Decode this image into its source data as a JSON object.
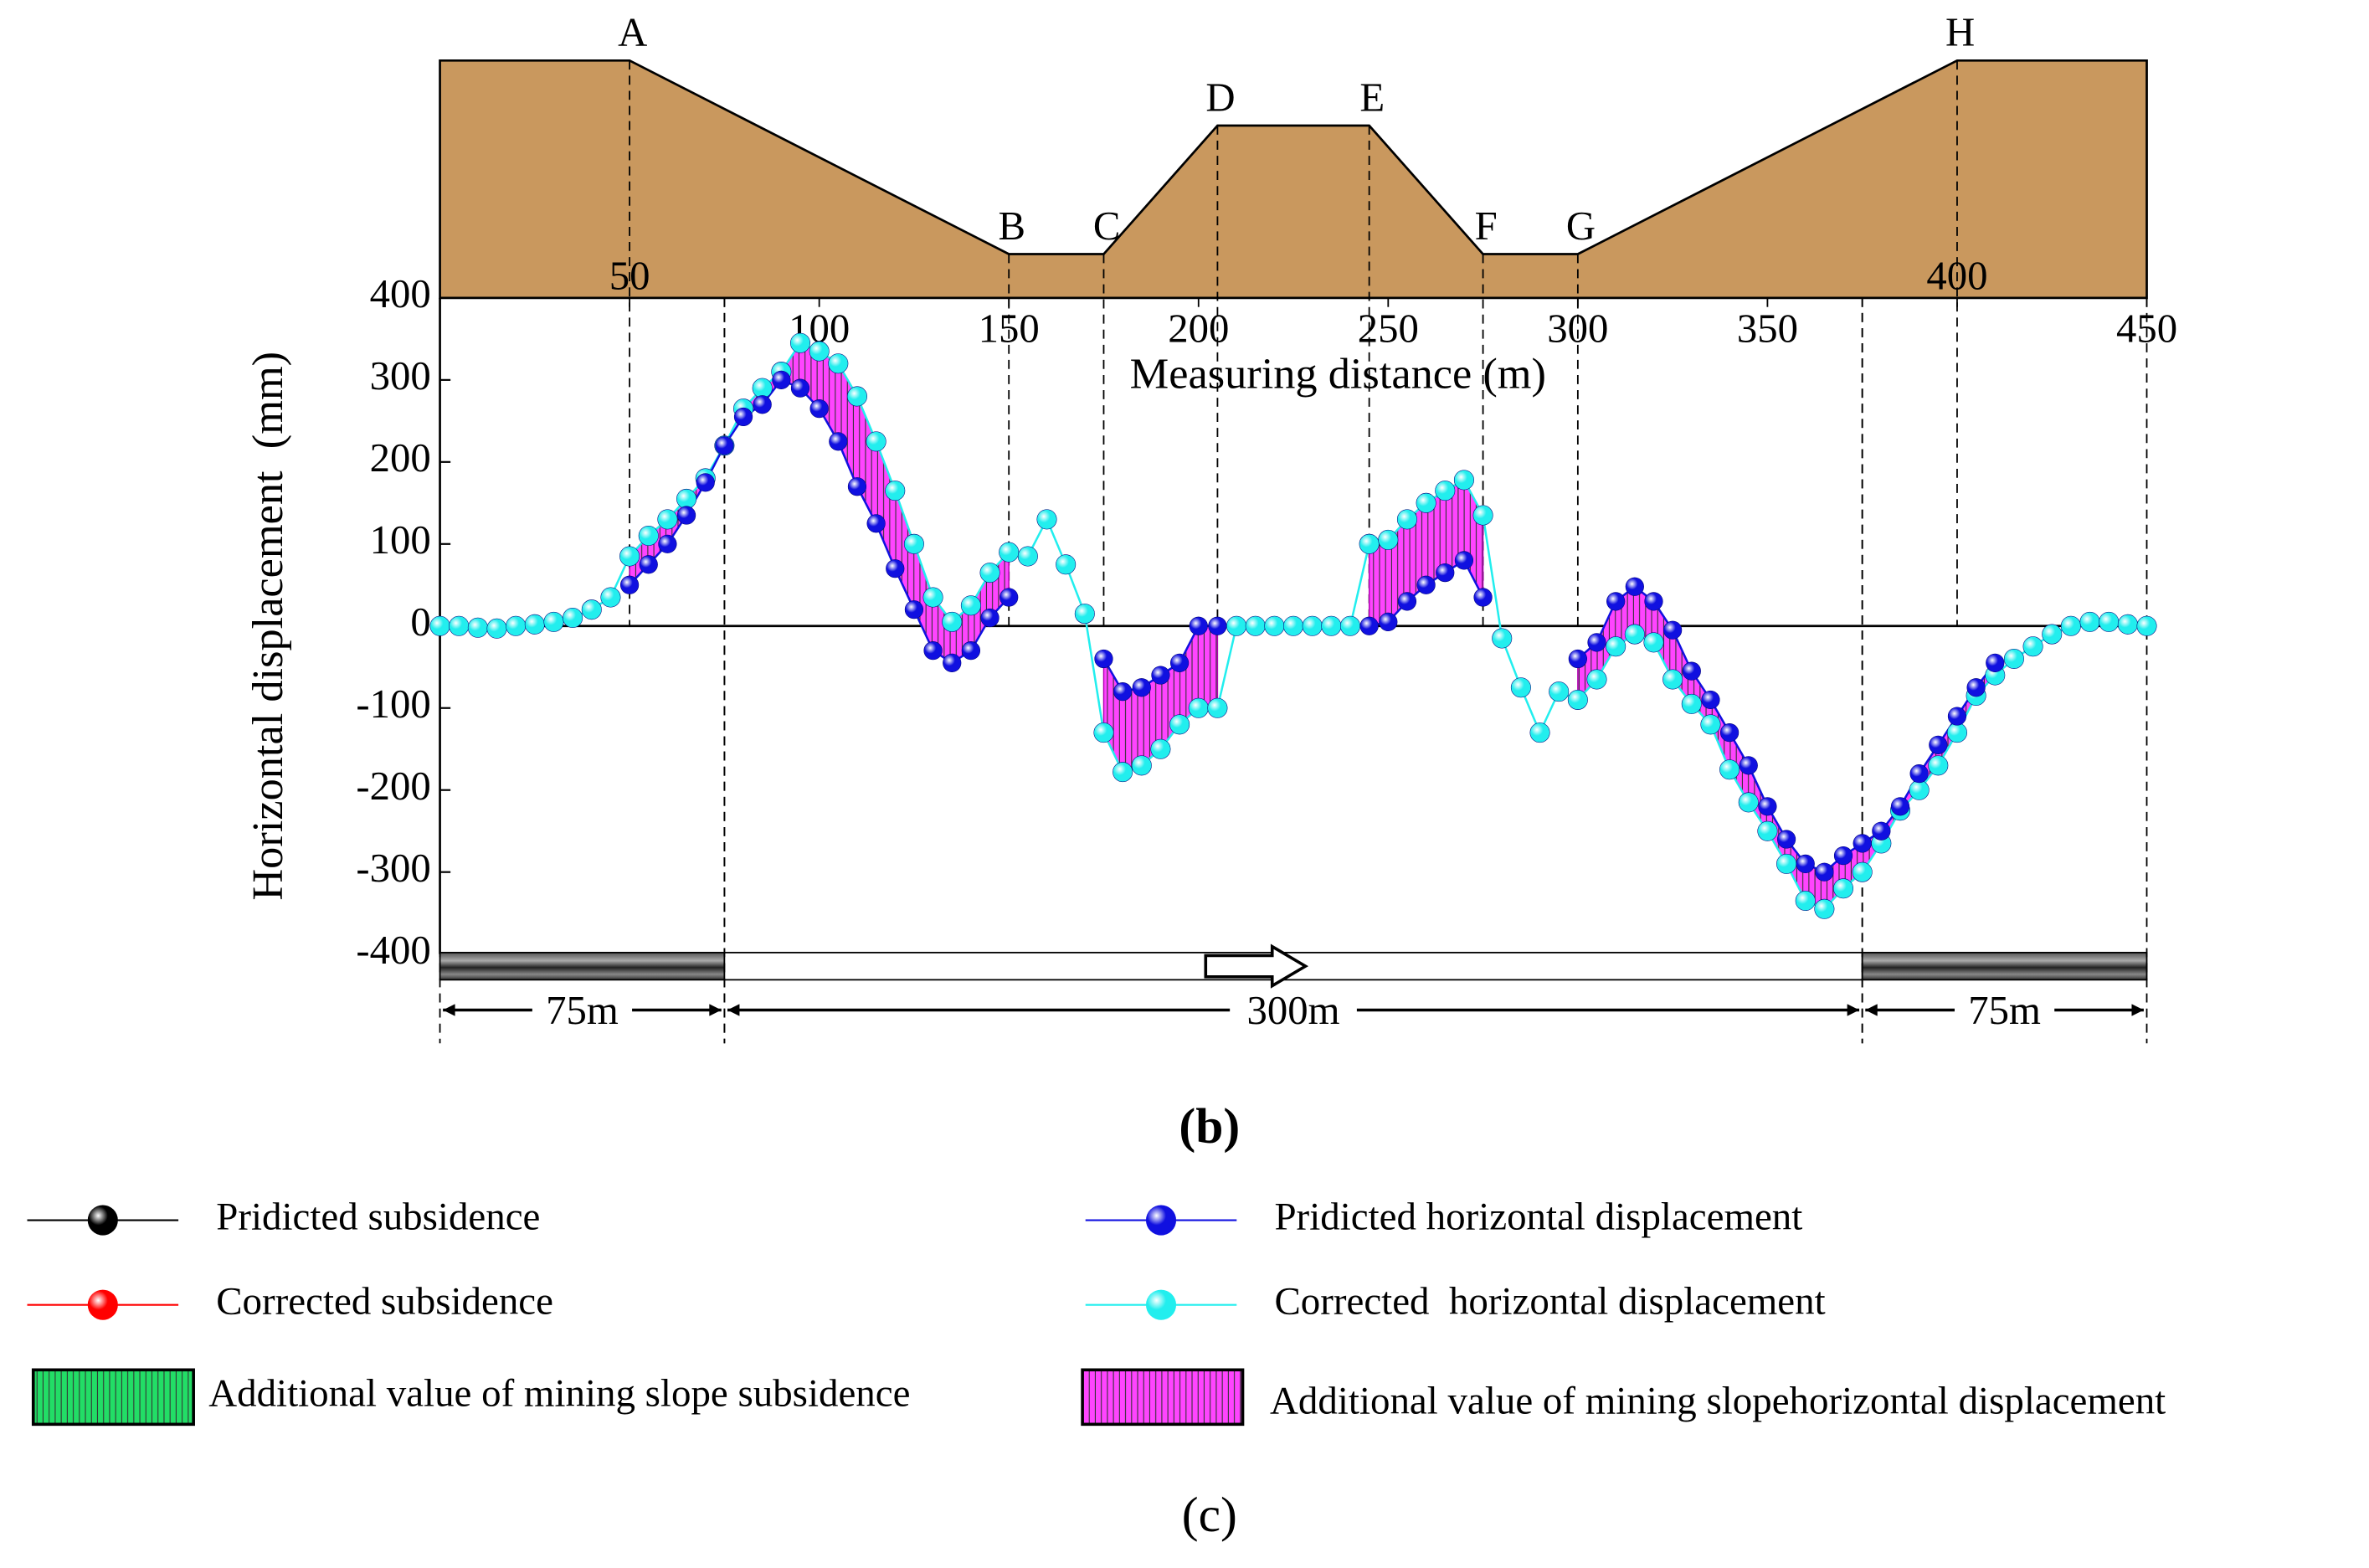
{
  "chart_data": {
    "type": "line",
    "x_label": "Measuring distance (m)",
    "y_label": "Horizontal displacement  (mm)",
    "xlim": [
      0,
      450
    ],
    "ylim": [
      -400,
      400
    ],
    "xticks": [
      50,
      100,
      150,
      200,
      250,
      300,
      350,
      400,
      450
    ],
    "yticks": [
      -400,
      -300,
      -200,
      -100,
      0,
      100,
      200,
      300,
      400
    ],
    "x": [
      0,
      5,
      10,
      15,
      20,
      25,
      30,
      35,
      40,
      45,
      50,
      55,
      60,
      65,
      70,
      75,
      80,
      85,
      90,
      95,
      100,
      105,
      110,
      115,
      120,
      125,
      130,
      135,
      140,
      145,
      150,
      155,
      160,
      165,
      170,
      175,
      180,
      185,
      190,
      195,
      200,
      205,
      210,
      215,
      220,
      225,
      230,
      235,
      240,
      245,
      250,
      255,
      260,
      265,
      270,
      275,
      280,
      285,
      290,
      295,
      300,
      305,
      310,
      315,
      320,
      325,
      330,
      335,
      340,
      345,
      350,
      355,
      360,
      365,
      370,
      375,
      380,
      385,
      390,
      395,
      400,
      405,
      410,
      415,
      420,
      425,
      430,
      435,
      440,
      445,
      450
    ],
    "series": [
      {
        "name": "Pridicted horizontal displacement",
        "color": "#1010e0",
        "values": [
          null,
          null,
          null,
          null,
          null,
          null,
          null,
          null,
          null,
          null,
          50,
          75,
          100,
          135,
          175,
          220,
          255,
          270,
          300,
          290,
          265,
          225,
          170,
          125,
          70,
          20,
          -30,
          -45,
          -30,
          10,
          35,
          null,
          null,
          null,
          null,
          -40,
          -80,
          -75,
          -60,
          -45,
          0,
          0,
          null,
          null,
          null,
          null,
          null,
          null,
          null,
          0,
          5,
          30,
          50,
          65,
          80,
          35,
          null,
          null,
          null,
          null,
          -40,
          -20,
          30,
          48,
          30,
          -5,
          -55,
          -90,
          -130,
          -170,
          -220,
          -260,
          -290,
          -300,
          -280,
          -265,
          -250,
          -220,
          -180,
          -145,
          -110,
          -75,
          -45,
          null,
          null,
          null,
          null,
          null,
          null,
          null,
          null
        ]
      },
      {
        "name": "Corrected  horizontal displacement",
        "color": "#22eeee",
        "values": [
          0,
          0,
          -2,
          -3,
          0,
          2,
          5,
          10,
          20,
          35,
          85,
          110,
          130,
          155,
          180,
          220,
          265,
          290,
          310,
          345,
          335,
          320,
          280,
          225,
          165,
          100,
          35,
          5,
          25,
          65,
          90,
          85,
          130,
          75,
          15,
          -130,
          -178,
          -170,
          -150,
          -120,
          -100,
          -100,
          0,
          0,
          0,
          0,
          0,
          0,
          0,
          100,
          105,
          130,
          150,
          165,
          178,
          135,
          -15,
          -75,
          -130,
          -80,
          -90,
          -65,
          -25,
          -10,
          -20,
          -65,
          -95,
          -120,
          -175,
          -215,
          -250,
          -290,
          -335,
          -345,
          -320,
          -300,
          -265,
          -225,
          -200,
          -170,
          -130,
          -85,
          -60,
          -40,
          -25,
          -10,
          0,
          5,
          5,
          2,
          0
        ]
      }
    ],
    "other_legend": [
      {
        "name": "Pridicted subsidence",
        "color": "#000000"
      },
      {
        "name": "Corrected subsidence",
        "color": "#ff0000"
      }
    ],
    "fill_legend": [
      {
        "name": "Additional value of mining slope subsidence",
        "color": "#22dd66"
      },
      {
        "name": "Additional value of mining slopehorizontal displacement",
        "color": "#ff44ff"
      }
    ],
    "annotations": [
      {
        "text": "A",
        "x": 50
      },
      {
        "text": "B",
        "x": 150
      },
      {
        "text": "C",
        "x": 175
      },
      {
        "text": "D",
        "x": 205
      },
      {
        "text": "E",
        "x": 245
      },
      {
        "text": "F",
        "x": 275
      },
      {
        "text": "G",
        "x": 300
      },
      {
        "text": "H",
        "x": 400
      }
    ],
    "panel_spans": [
      {
        "label": "75m",
        "from": 0,
        "to": 75
      },
      {
        "label": "300m",
        "from": 75,
        "to": 375
      },
      {
        "label": "75m",
        "from": 375,
        "to": 450
      }
    ],
    "panel_labels": [
      "(b)",
      "(c)"
    ]
  }
}
